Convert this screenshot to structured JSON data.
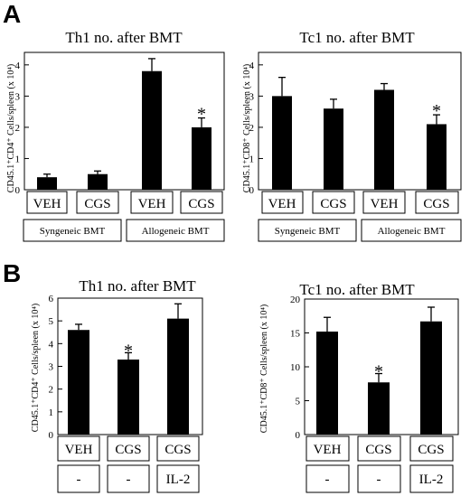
{
  "panels": [
    {
      "letter": "A",
      "charts": [
        {
          "title": "Th1 no. after BMT",
          "ylabel": "CD45.1⁺CD4⁺ Cells/spleen (x 10⁴)",
          "ticks": [
            "0",
            "1",
            "2",
            "3",
            "4"
          ],
          "cat_labels": [
            "VEH",
            "CGS",
            "VEH",
            "CGS"
          ],
          "group_labels": [
            "Syngeneic BMT",
            "Allogeneic BMT"
          ],
          "star": "*"
        },
        {
          "title": "Tc1 no. after BMT",
          "ylabel": "CD45.1⁺CD8⁺ Cells/spleen (x 10⁴)",
          "ticks": [
            "0",
            "1",
            "2",
            "3",
            "4"
          ],
          "cat_labels": [
            "VEH",
            "CGS",
            "VEH",
            "CGS"
          ],
          "group_labels": [
            "Syngeneic BMT",
            "Allogeneic BMT"
          ],
          "star": "*"
        }
      ]
    },
    {
      "letter": "B",
      "charts": [
        {
          "title": "Th1 no. after BMT",
          "ylabel": "CD45.1⁺CD4⁺ Cells/spleen (x 10⁴)",
          "ticks": [
            "0",
            "1",
            "2",
            "3",
            "4",
            "5",
            "6"
          ],
          "cat_labels": [
            "VEH",
            "CGS",
            "CGS"
          ],
          "group_labels": [
            "-",
            "-",
            "IL-2"
          ],
          "star": "*"
        },
        {
          "title": "Tc1 no. after BMT",
          "ylabel": "CD45.1⁺CD8⁺ Cells/spleen (x 10⁴)",
          "ticks": [
            "0",
            "5",
            "10",
            "15",
            "20"
          ],
          "cat_labels": [
            "VEH",
            "CGS",
            "CGS"
          ],
          "group_labels": [
            "-",
            "-",
            "IL-2"
          ],
          "star": "*"
        }
      ]
    }
  ],
  "chart_data": [
    {
      "type": "bar",
      "title": "Th1 no. after BMT",
      "ylabel": "CD45.1⁺CD4⁺ Cells/spleen (x 10⁴)",
      "categories": [
        "VEH",
        "CGS",
        "VEH",
        "CGS"
      ],
      "groups": [
        "Syngeneic BMT",
        "Allogeneic BMT"
      ],
      "values": [
        0.4,
        0.5,
        3.8,
        2.0
      ],
      "errors": [
        0.1,
        0.1,
        0.4,
        0.3
      ],
      "significant": [
        false,
        false,
        false,
        true
      ],
      "ylim": [
        0,
        4.4
      ]
    },
    {
      "type": "bar",
      "title": "Tc1 no. after BMT",
      "ylabel": "CD45.1⁺CD8⁺ Cells/spleen (x 10⁴)",
      "categories": [
        "VEH",
        "CGS",
        "VEH",
        "CGS"
      ],
      "groups": [
        "Syngeneic BMT",
        "Allogeneic BMT"
      ],
      "values": [
        3.0,
        2.6,
        3.2,
        2.1
      ],
      "errors": [
        0.6,
        0.3,
        0.2,
        0.3
      ],
      "significant": [
        false,
        false,
        false,
        true
      ],
      "ylim": [
        0,
        4.4
      ]
    },
    {
      "type": "bar",
      "title": "Th1 no. after BMT",
      "ylabel": "CD45.1⁺CD4⁺ Cells/spleen (x 10⁴)",
      "categories": [
        "VEH",
        "CGS",
        "CGS"
      ],
      "groups": [
        "-",
        "-",
        "IL-2"
      ],
      "values": [
        4.6,
        3.3,
        5.1
      ],
      "errors": [
        0.25,
        0.3,
        0.65
      ],
      "significant": [
        false,
        true,
        false
      ],
      "ylim": [
        0,
        6
      ]
    },
    {
      "type": "bar",
      "title": "Tc1 no. after BMT",
      "ylabel": "CD45.1⁺CD8⁺ Cells/spleen (x 10⁴)",
      "categories": [
        "VEH",
        "CGS",
        "CGS"
      ],
      "groups": [
        "-",
        "-",
        "IL-2"
      ],
      "values": [
        15.2,
        7.7,
        16.7
      ],
      "errors": [
        2.1,
        1.3,
        2.1
      ],
      "significant": [
        false,
        true,
        false
      ],
      "ylim": [
        0,
        20
      ]
    }
  ]
}
